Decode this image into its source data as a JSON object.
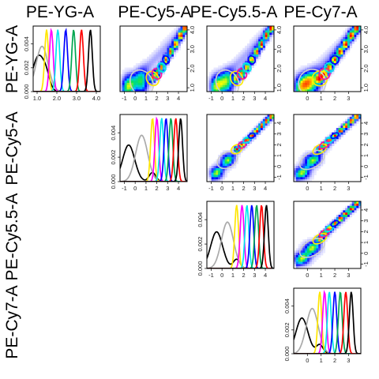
{
  "chart_data": {
    "type": "scatter",
    "layout": "pairwise-matrix",
    "variables": [
      "PE-YG-A",
      "PE-Cy5-A",
      "PE-Cy5.5-A",
      "PE-Cy7-A"
    ],
    "column_headers": [
      "PE-YG-A",
      "PE-Cy5-A",
      "PE-Cy5.5-A",
      "PE-Cy7-A"
    ],
    "row_headers": [
      "PE-YG-A",
      "PE-Cy5-A",
      "PE-Cy5.5-A",
      "PE-Cy7-A"
    ],
    "axes": {
      "PE-YG-A": {
        "range": [
          0.8,
          4.2
        ],
        "ticks": [
          "1.0",
          "2.0",
          "3.0",
          "4.0"
        ],
        "tick_values": [
          1.0,
          2.0,
          3.0,
          4.0
        ]
      },
      "PE-Cy5-A": {
        "range": [
          -1.4,
          4.8
        ],
        "ticks": [
          "-1",
          "0",
          "1",
          "2",
          "3",
          "4"
        ],
        "tick_values": [
          -1,
          0,
          1,
          2,
          3,
          4
        ]
      },
      "PE-Cy5.5-A": {
        "range": [
          -1.4,
          4.8
        ],
        "ticks": [
          "-1",
          "0",
          "1",
          "2",
          "3",
          "4"
        ],
        "tick_values": [
          -1,
          0,
          1,
          2,
          3,
          4
        ]
      },
      "PE-Cy7-A": {
        "range": [
          -1.0,
          3.9
        ],
        "ticks": [
          "0",
          "1",
          "2",
          "3"
        ],
        "tick_values": [
          0,
          1,
          2,
          3
        ]
      }
    },
    "density_axis": {
      "range": [
        0,
        0.0055
      ],
      "ticks": [
        "0.000",
        "0.002",
        "0.004"
      ],
      "tick_values": [
        0.0,
        0.002,
        0.004
      ]
    },
    "peaks": {
      "PE-YG-A": [
        1.08,
        1.25,
        1.48,
        1.72,
        2.05,
        2.45,
        2.85,
        3.25,
        3.7,
        4.1
      ],
      "PE-Cy5-A": [
        -0.6,
        0.6,
        1.6,
        2.0,
        2.45,
        2.85,
        3.3,
        3.75,
        4.2,
        4.6
      ],
      "PE-Cy5.5-A": [
        -0.5,
        0.5,
        1.35,
        1.85,
        2.3,
        2.75,
        3.2,
        3.65,
        4.1,
        4.55
      ],
      "PE-Cy7-A": [
        -0.4,
        0.35,
        0.9,
        1.25,
        1.6,
        2.0,
        2.4,
        2.8,
        3.2,
        3.6
      ]
    },
    "density_curves": [
      {
        "color": "#000000",
        "peak_index": 0,
        "height": 0.003
      },
      {
        "color": "#aaaaaa",
        "peak_index": 1,
        "height": 0.0038
      },
      {
        "color": "#ffe600",
        "peak_index": 2,
        "height": 0.0052
      },
      {
        "color": "#ff00ff",
        "peak_index": 3,
        "height": 0.0052
      },
      {
        "color": "#00e5ee",
        "peak_index": 4,
        "height": 0.0052
      },
      {
        "color": "#0000ff",
        "peak_index": 5,
        "height": 0.0052
      },
      {
        "color": "#00a650",
        "peak_index": 6,
        "height": 0.0052
      },
      {
        "color": "#ff0000",
        "peak_index": 7,
        "height": 0.0052
      },
      {
        "color": "#000000",
        "peak_index": 8,
        "height": 0.0052
      }
    ],
    "gate_ellipses": [
      {
        "color": "#cfcfcf",
        "peak_index": 1,
        "size": 1.0
      },
      {
        "color": "#ffee00",
        "peak_index": 2,
        "size": 0.55
      },
      {
        "color": "#ff1493",
        "peak_index": 3,
        "size": 0.4
      },
      {
        "color": "#00e5ee",
        "peak_index": 4,
        "size": 0.35
      },
      {
        "color": "#0000ff",
        "peak_index": 5,
        "size": 0.3
      }
    ],
    "density_colormap": [
      "#ffffff",
      "#d6d6ff",
      "#7070ff",
      "#0000ff",
      "#00c8ff",
      "#00e060",
      "#ffff00",
      "#ff8000",
      "#ff0000"
    ],
    "grid": false,
    "legend": "none"
  }
}
